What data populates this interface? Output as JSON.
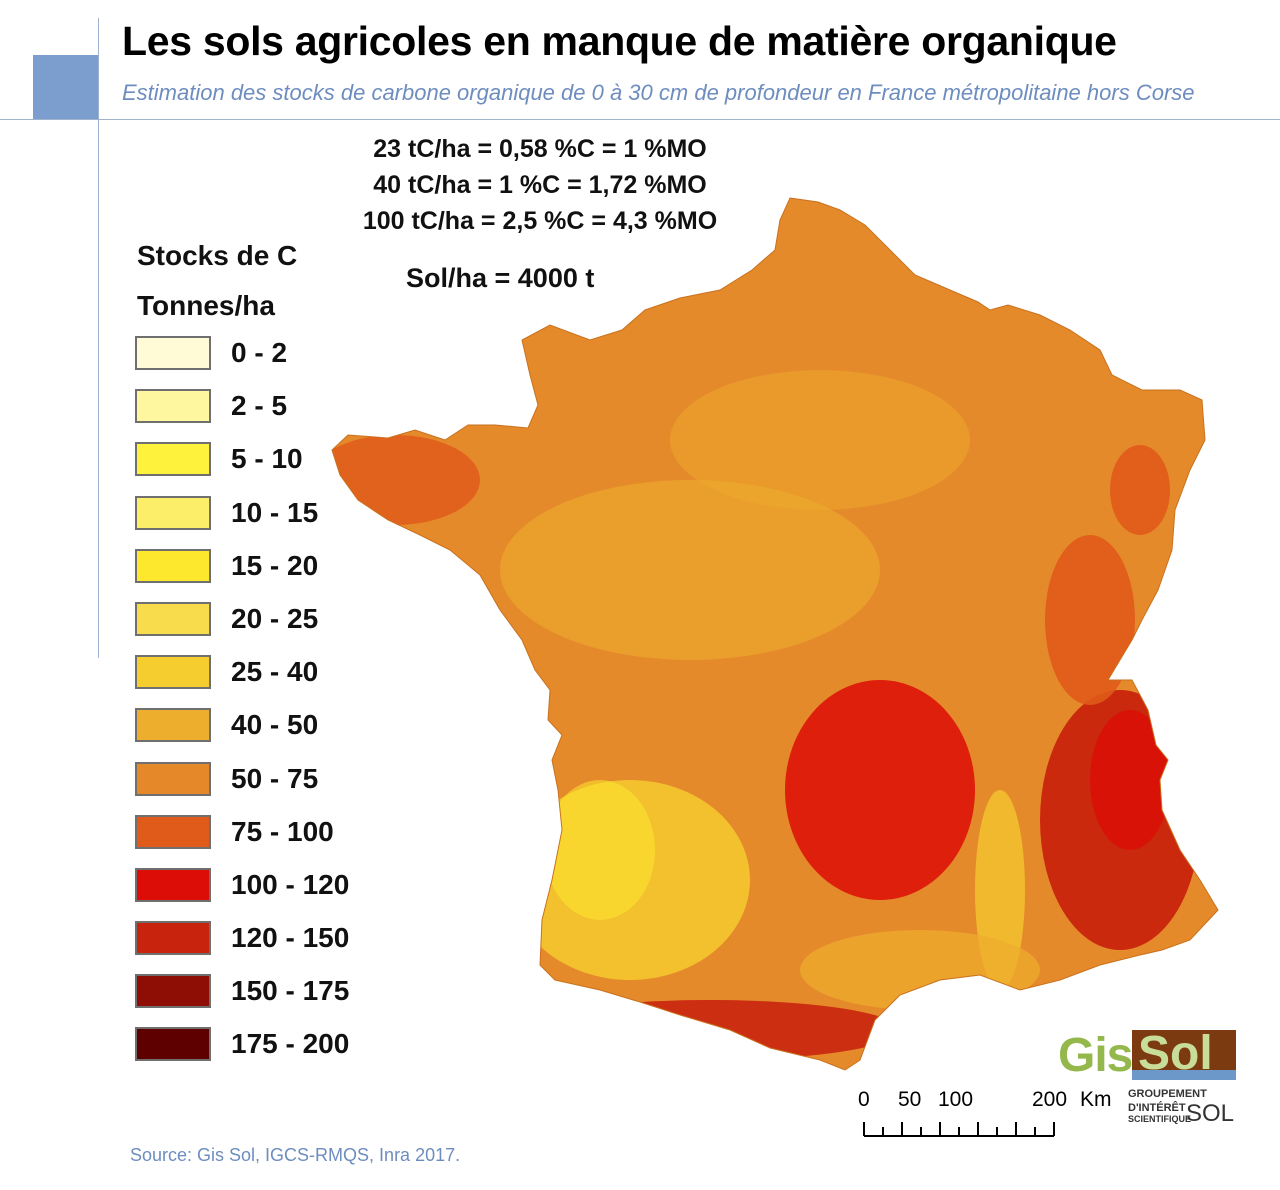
{
  "header": {
    "title": "Les sols agricoles en manque de matière organique",
    "subtitle": "Estimation des stocks de carbone organique de 0 à 30 cm de profondeur en France métropolitaine hors Corse"
  },
  "conversions": [
    "23 tC/ha = 0,58 %C = 1 %MO",
    "40 tC/ha = 1 %C = 1,72 %MO",
    "100 tC/ha = 2,5 %C = 4,3 %MO"
  ],
  "soil_mass": "Sol/ha = 4000 t",
  "legend": {
    "title_line1": "Stocks de C",
    "title_line2": "Tonnes/ha",
    "items": [
      {
        "label": "0 - 2",
        "color": "#fffbd6"
      },
      {
        "label": "2 - 5",
        "color": "#fff7a0"
      },
      {
        "label": "5 - 10",
        "color": "#fff23d"
      },
      {
        "label": "10 - 15",
        "color": "#fdee6a"
      },
      {
        "label": "15 - 20",
        "color": "#fde82e"
      },
      {
        "label": "20 - 25",
        "color": "#f9dc4c"
      },
      {
        "label": "25 - 40",
        "color": "#f6cd2f"
      },
      {
        "label": "40 - 50",
        "color": "#eeae2d"
      },
      {
        "label": "50 - 75",
        "color": "#e5882a"
      },
      {
        "label": "75 - 100",
        "color": "#e05a1a"
      },
      {
        "label": "100 - 120",
        "color": "#dc0c06"
      },
      {
        "label": "120 - 150",
        "color": "#c8240d"
      },
      {
        "label": "150 - 175",
        "color": "#8e0e06"
      },
      {
        "label": "175 - 200",
        "color": "#5e0000"
      }
    ]
  },
  "map": {
    "base_color": "#e58a2b",
    "region_colors": {
      "north": "#e58a2b",
      "brittany": "#e05a1a",
      "loire": "#eeae2d",
      "southwest": "#f6cd2f",
      "landes_pale": "#fde82e",
      "alps": "#c8240d",
      "alps_dark": "#dc0c06",
      "massif_central": "#dc0c06",
      "vosges": "#e05a1a",
      "pyrenees": "#c8240d",
      "rhone": "#f6cd2f",
      "mediterranean": "#eeae2d"
    }
  },
  "scale_bar": {
    "labels": [
      "0",
      "50",
      "100",
      "200"
    ],
    "unit": "Km"
  },
  "logo": {
    "gis": "Gis",
    "sol": "Sol",
    "line1": "GROUPEMENT",
    "line2": "D'INTÉRÊT",
    "line3": "SCIENTIFIQUE",
    "sol_small": "SOL"
  },
  "source": "Source: Gis Sol, IGCS-RMQS, Inra 2017."
}
